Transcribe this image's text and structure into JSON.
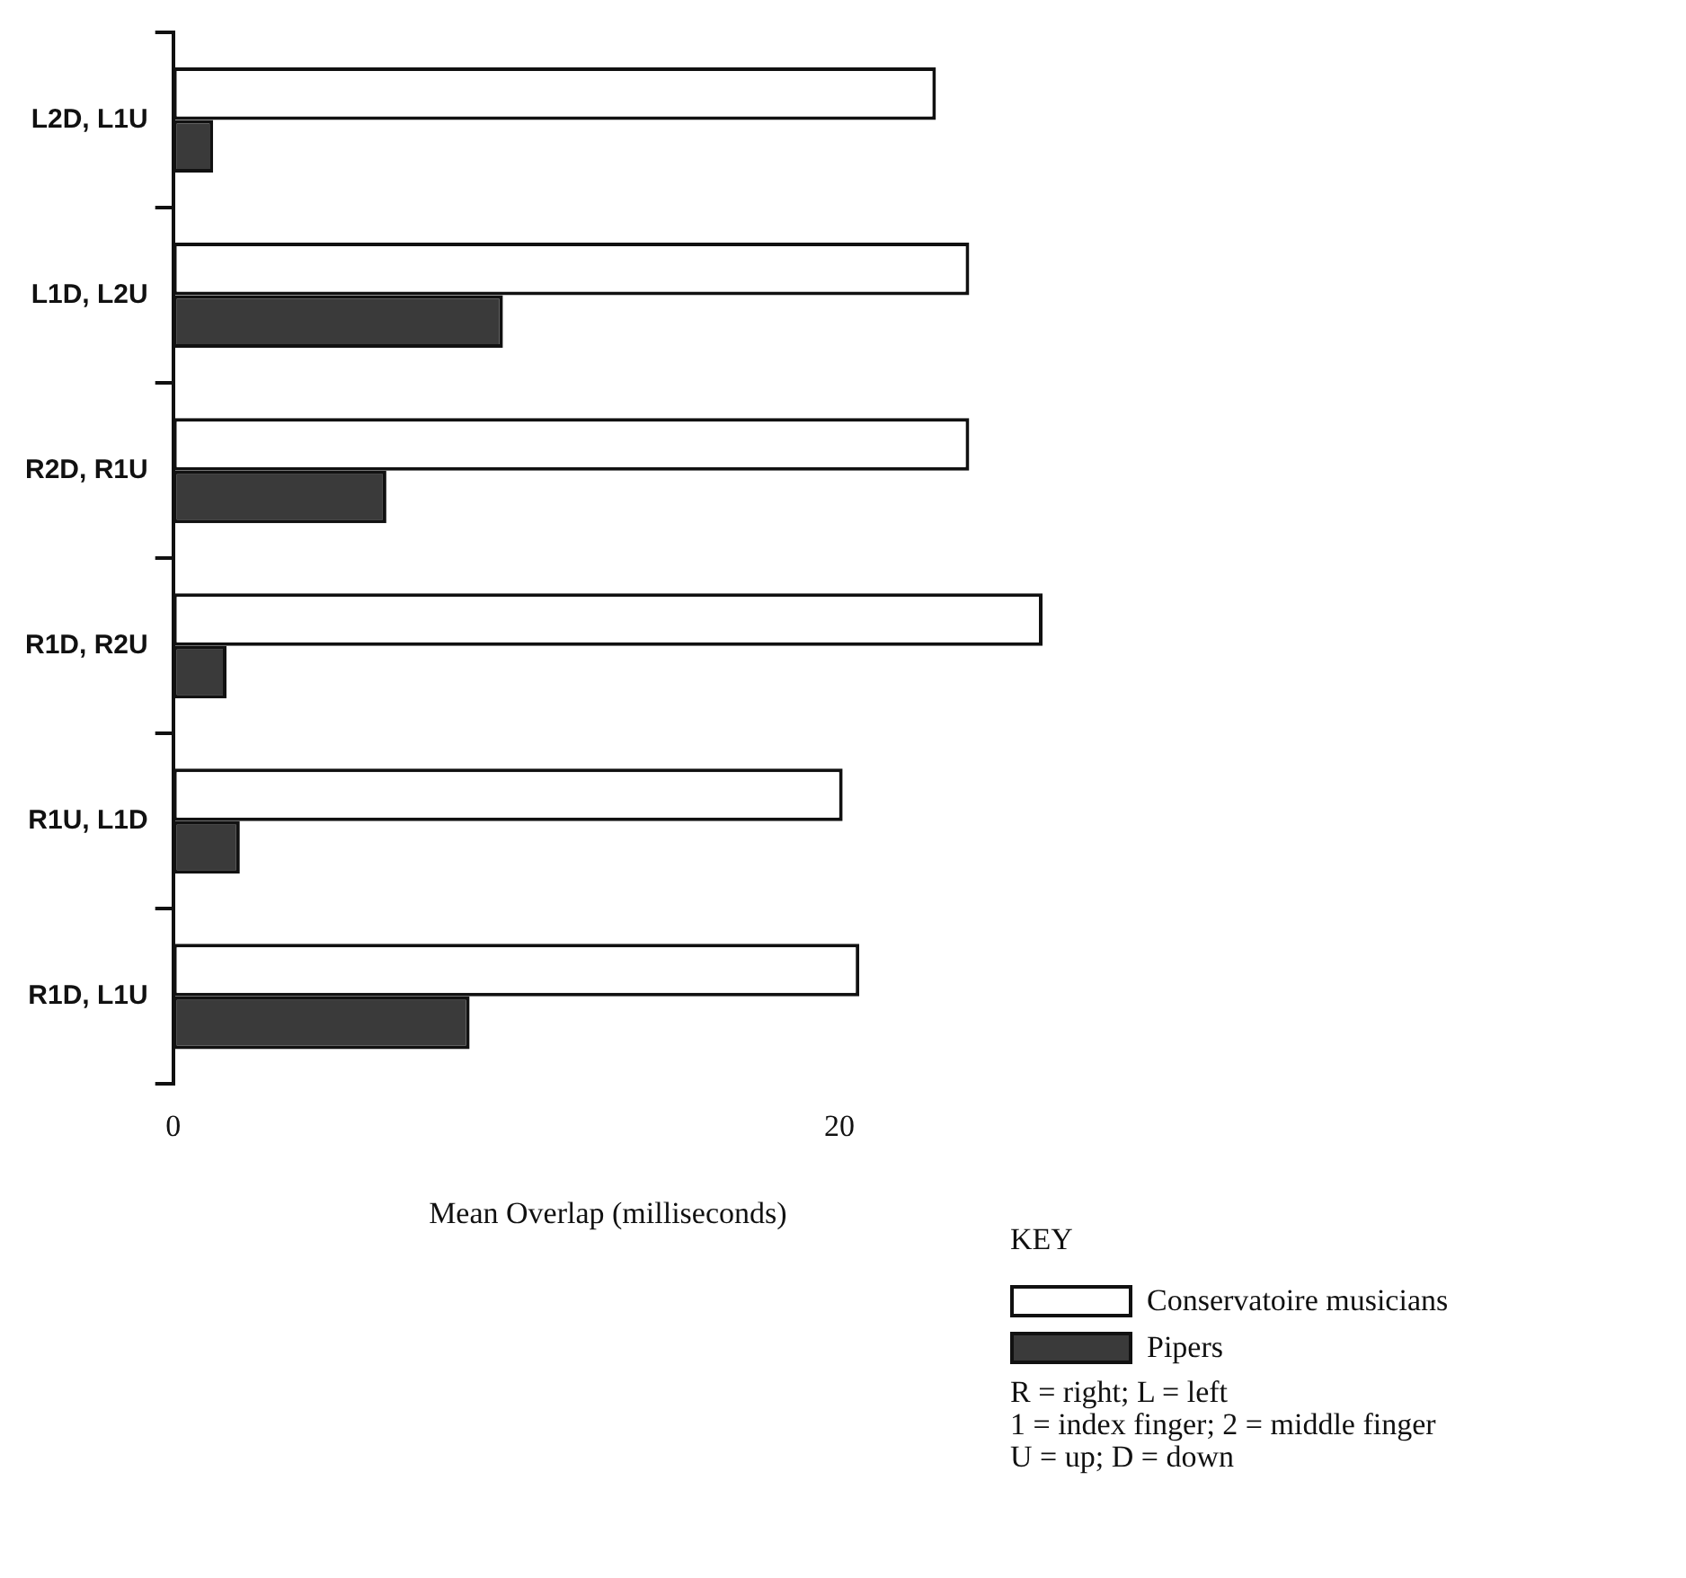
{
  "chart_data": {
    "type": "bar",
    "orientation": "horizontal",
    "xlabel": "Mean Overlap (milliseconds)",
    "categories": [
      "L2D, L1U",
      "L1D, L2U",
      "R2D, R1U",
      "R1D, R2U",
      "R1U, L1D",
      "R1D, L1U"
    ],
    "series": [
      {
        "name": "Conservatoire musicians",
        "color": "#ffffff",
        "values": [
          22.9,
          23.9,
          23.9,
          26.1,
          20.1,
          20.6
        ]
      },
      {
        "name": "Pipers",
        "color": "#3a3a3a",
        "values": [
          1.2,
          9.9,
          6.4,
          1.6,
          2.0,
          8.9
        ]
      }
    ],
    "xlim": [
      0,
      26.1
    ],
    "xticks": [
      0,
      20
    ],
    "grid": false,
    "legend": "bottom right",
    "legend_title": "KEY",
    "annotations": [
      "R = right; L = left",
      "1 = index finger; 2 = middle finger",
      "U = up; D = down"
    ]
  }
}
